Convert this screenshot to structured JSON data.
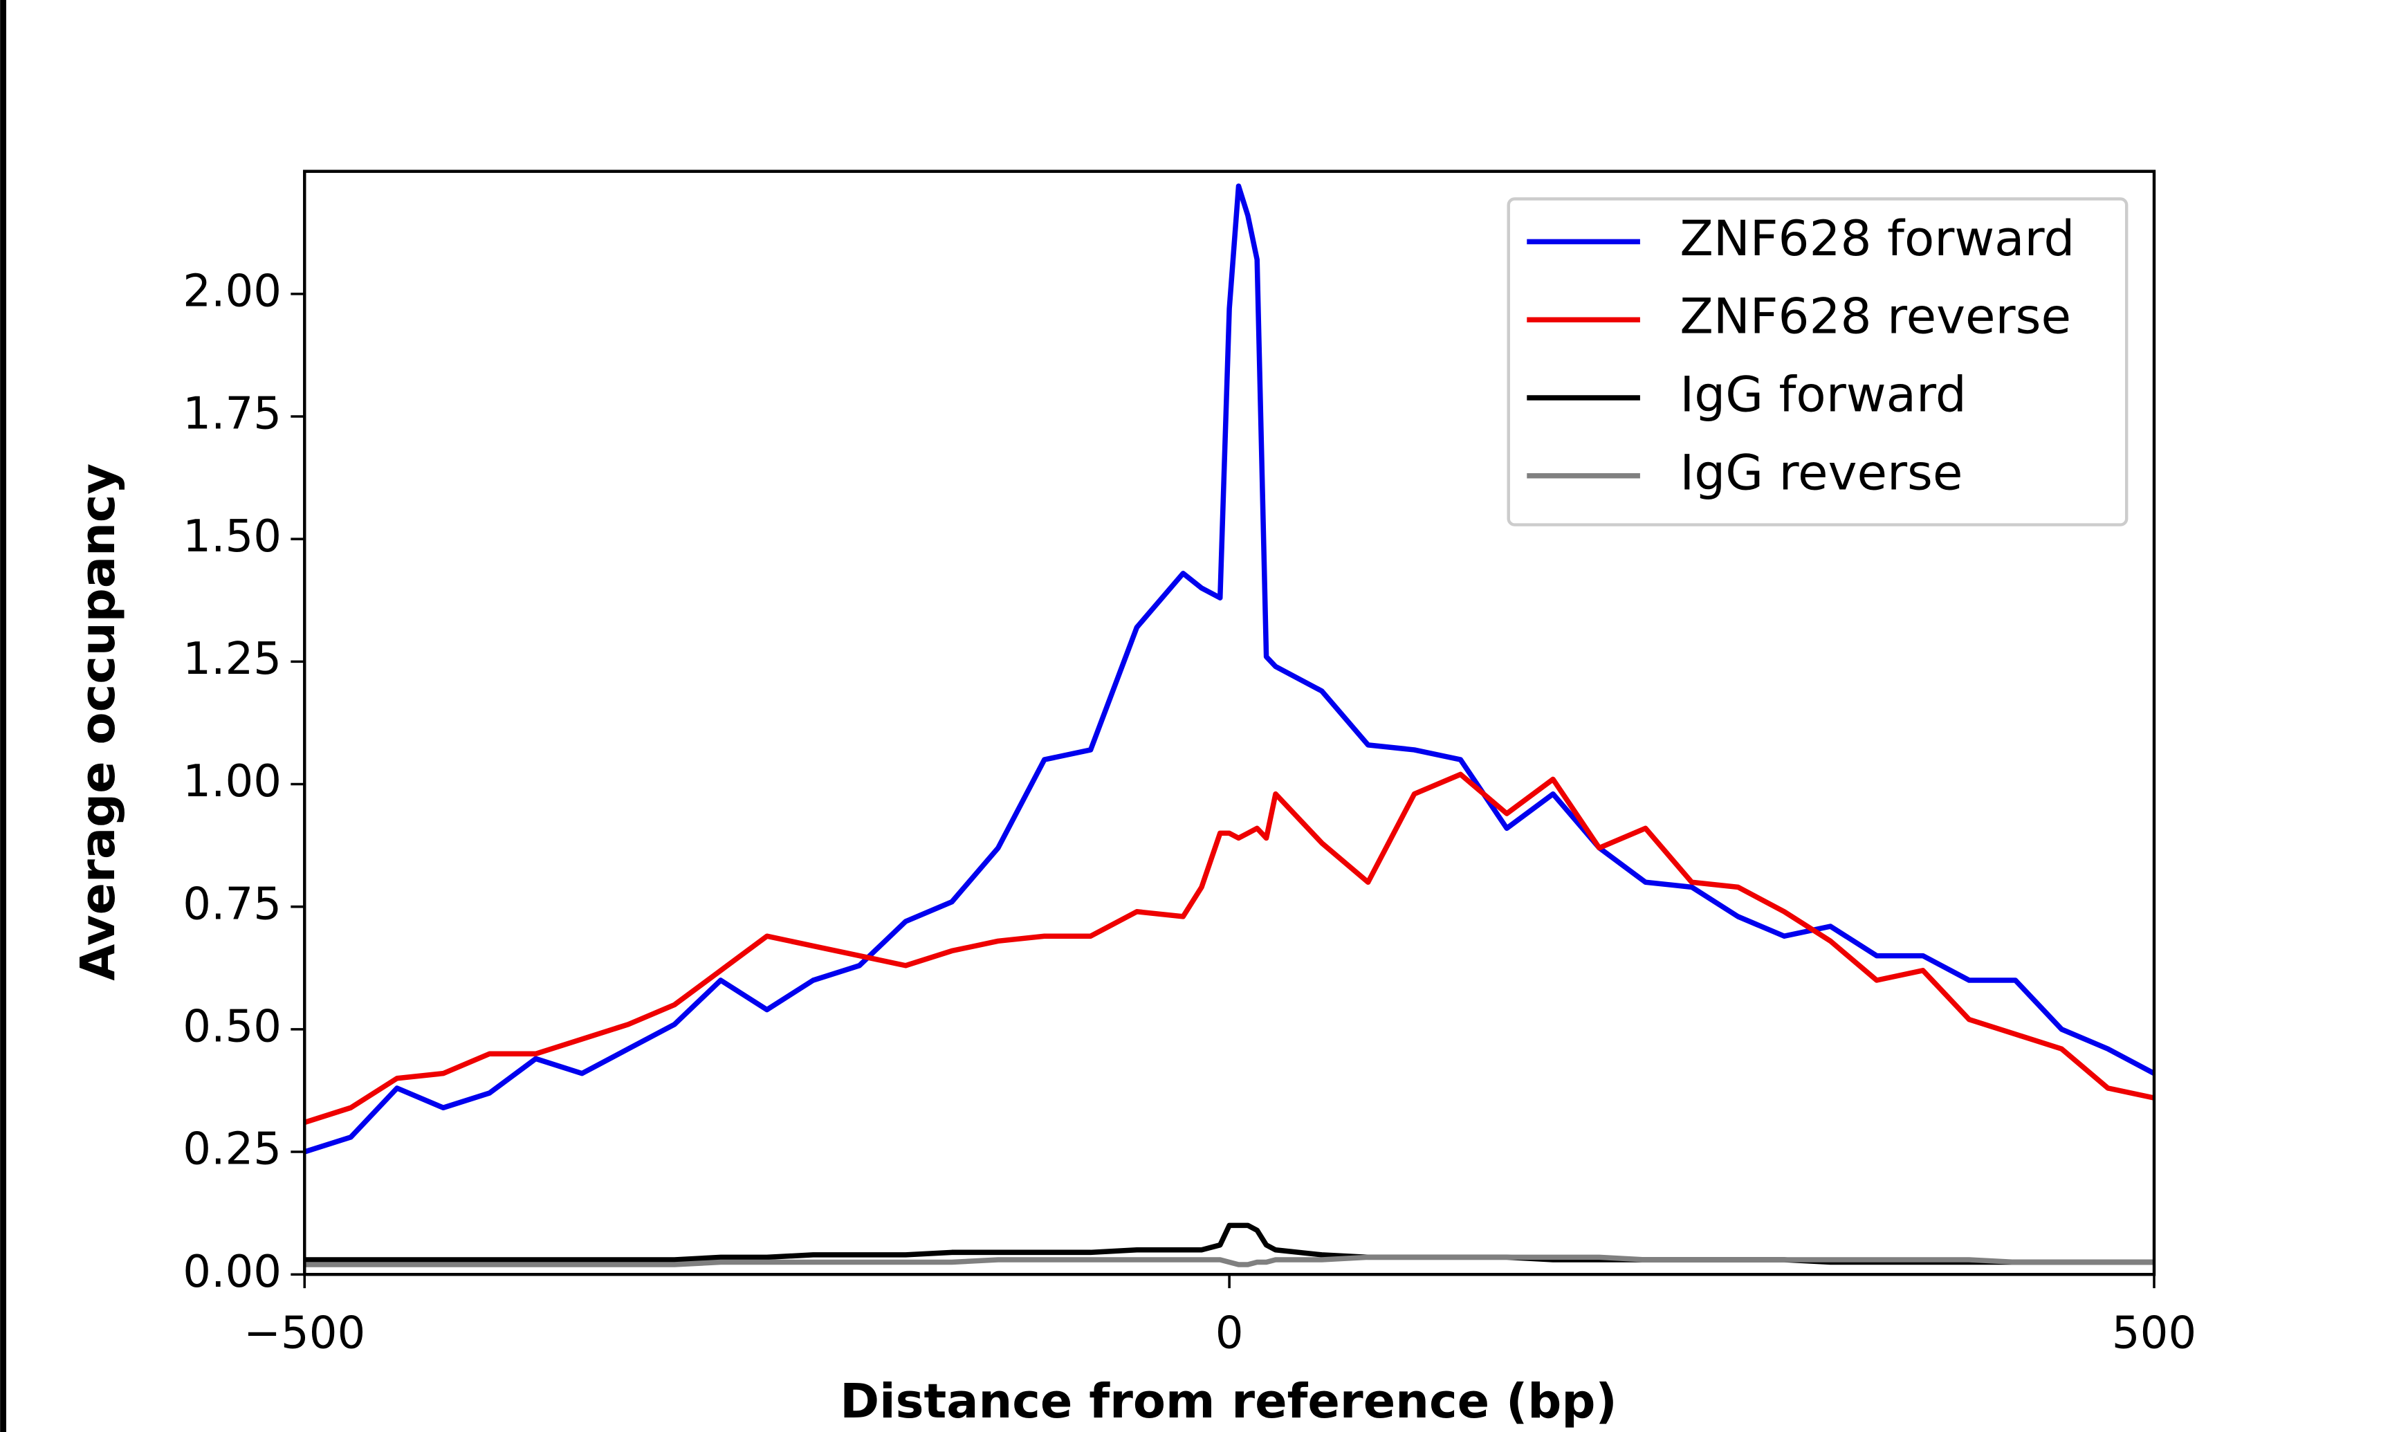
{
  "chart_data": {
    "type": "line",
    "xlabel": "Distance from reference (bp)",
    "ylabel": "Average occupancy",
    "x": [
      -500,
      -475,
      -450,
      -425,
      -400,
      -375,
      -350,
      -325,
      -300,
      -275,
      -250,
      -225,
      -200,
      -175,
      -150,
      -125,
      -100,
      -75,
      -50,
      -25,
      -15,
      -5,
      0,
      5,
      10,
      15,
      20,
      25,
      50,
      75,
      100,
      125,
      150,
      175,
      200,
      225,
      250,
      275,
      300,
      325,
      350,
      375,
      400,
      425,
      450,
      475,
      500
    ],
    "series": [
      {
        "name": "ZNF628 forward",
        "color": "#0000ee",
        "values": [
          0.25,
          0.28,
          0.38,
          0.34,
          0.37,
          0.44,
          0.41,
          0.46,
          0.51,
          0.6,
          0.54,
          0.6,
          0.63,
          0.72,
          0.76,
          0.87,
          1.05,
          1.07,
          1.32,
          1.43,
          1.4,
          1.38,
          1.97,
          2.22,
          2.16,
          2.07,
          1.26,
          1.24,
          1.19,
          1.08,
          1.07,
          1.05,
          0.91,
          0.98,
          0.87,
          0.8,
          0.79,
          0.73,
          0.69,
          0.71,
          0.65,
          0.65,
          0.6,
          0.6,
          0.5,
          0.46,
          0.41
        ]
      },
      {
        "name": "ZNF628 reverse",
        "color": "#ee0000",
        "values": [
          0.31,
          0.34,
          0.4,
          0.41,
          0.45,
          0.45,
          0.48,
          0.51,
          0.55,
          0.62,
          0.69,
          0.67,
          0.65,
          0.63,
          0.66,
          0.68,
          0.69,
          0.69,
          0.74,
          0.73,
          0.79,
          0.9,
          0.9,
          0.89,
          0.9,
          0.91,
          0.89,
          0.98,
          0.88,
          0.8,
          0.98,
          1.02,
          0.94,
          1.01,
          0.87,
          0.91,
          0.8,
          0.79,
          0.74,
          0.68,
          0.6,
          0.62,
          0.52,
          0.49,
          0.46,
          0.38,
          0.36
        ]
      },
      {
        "name": "IgG forward",
        "color": "#000000",
        "values": [
          0.03,
          0.03,
          0.03,
          0.03,
          0.03,
          0.03,
          0.03,
          0.03,
          0.03,
          0.035,
          0.035,
          0.04,
          0.04,
          0.04,
          0.045,
          0.045,
          0.045,
          0.045,
          0.05,
          0.05,
          0.05,
          0.06,
          0.1,
          0.1,
          0.1,
          0.09,
          0.06,
          0.05,
          0.04,
          0.035,
          0.035,
          0.035,
          0.035,
          0.03,
          0.03,
          0.03,
          0.03,
          0.03,
          0.03,
          0.025,
          0.025,
          0.025,
          0.025,
          0.025,
          0.025,
          0.025,
          0.025
        ]
      },
      {
        "name": "IgG reverse",
        "color": "#808080",
        "values": [
          0.02,
          0.02,
          0.02,
          0.02,
          0.02,
          0.02,
          0.02,
          0.02,
          0.02,
          0.025,
          0.025,
          0.025,
          0.025,
          0.025,
          0.025,
          0.03,
          0.03,
          0.03,
          0.03,
          0.03,
          0.03,
          0.03,
          0.025,
          0.02,
          0.02,
          0.025,
          0.025,
          0.03,
          0.03,
          0.035,
          0.035,
          0.035,
          0.035,
          0.035,
          0.035,
          0.03,
          0.03,
          0.03,
          0.03,
          0.03,
          0.03,
          0.03,
          0.03,
          0.025,
          0.025,
          0.025,
          0.025
        ]
      }
    ],
    "xlim": [
      -500,
      500
    ],
    "xticks": [
      {
        "value": -500,
        "label": "−500"
      },
      0,
      500
    ],
    "ylim": [
      0,
      2.25
    ],
    "yticks": [
      {
        "value": 0,
        "label": "0.00"
      },
      {
        "value": 0.25,
        "label": "0.25"
      },
      {
        "value": 0.5,
        "label": "0.50"
      },
      {
        "value": 0.75,
        "label": "0.75"
      },
      {
        "value": 1,
        "label": "1.00"
      },
      {
        "value": 1.25,
        "label": "1.25"
      },
      {
        "value": 1.5,
        "label": "1.50"
      },
      {
        "value": 1.75,
        "label": "1.75"
      },
      {
        "value": 2,
        "label": "2.00"
      }
    ],
    "legend": "upper right",
    "grid": false
  }
}
